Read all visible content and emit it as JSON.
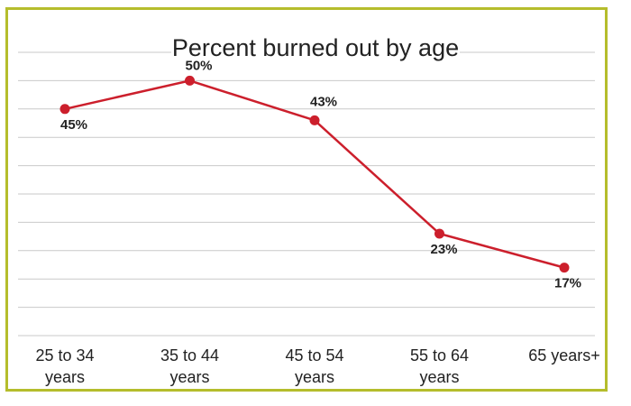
{
  "chart_data": {
    "type": "line",
    "title": "Percent burned out by age",
    "categories": [
      [
        "25 to 34",
        "years"
      ],
      [
        "35 to 44",
        "years"
      ],
      [
        "45 to 54",
        "years"
      ],
      [
        "55 to 64",
        "years"
      ],
      [
        "65 years+"
      ]
    ],
    "values": [
      45,
      50,
      43,
      23,
      17
    ],
    "data_labels": [
      "45%",
      "50%",
      "43%",
      "23%",
      "17%"
    ],
    "ylim": [
      5,
      55
    ],
    "grid": true,
    "colors": {
      "line": "#cc1f2c",
      "grid": "#c9c9c9",
      "frame": "#b5bd2c",
      "text": "#222222"
    }
  }
}
